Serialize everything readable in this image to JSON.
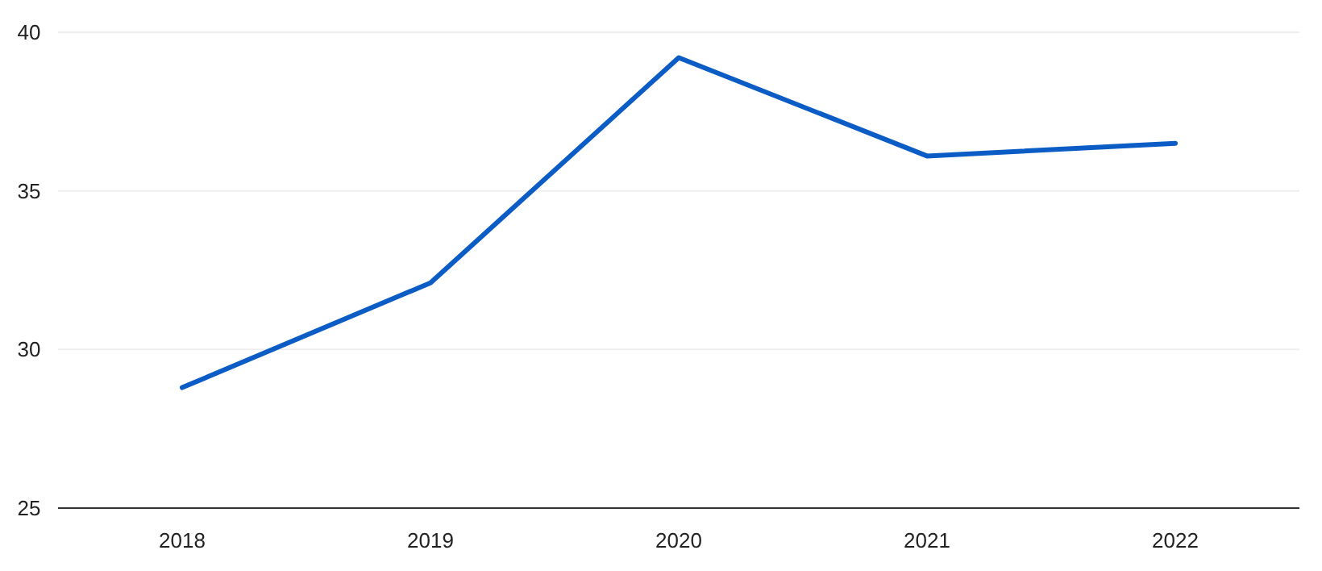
{
  "chart_data": {
    "type": "line",
    "categories": [
      "2018",
      "2019",
      "2020",
      "2021",
      "2022"
    ],
    "series": [
      {
        "color": "#0b5cc5",
        "values": [
          28.8,
          32.1,
          39.2,
          36.1,
          36.5
        ]
      }
    ],
    "ylim": [
      25,
      40
    ],
    "yticks": [
      25,
      30,
      35,
      40
    ],
    "grid": "y",
    "marker": "none",
    "line_style": "solid"
  }
}
